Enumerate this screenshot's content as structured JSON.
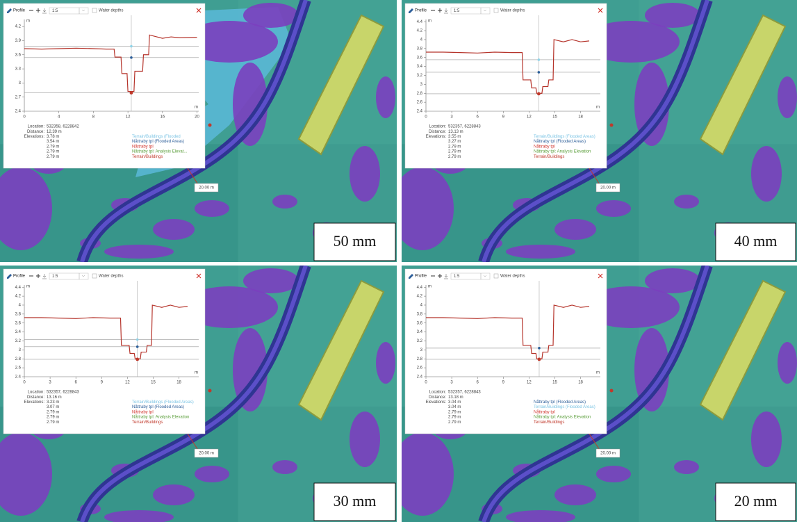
{
  "panels": [
    {
      "toolbar": {
        "title": "Profile",
        "scale": "1:5",
        "checkbox": "Water depths"
      },
      "profile": {
        "type": "line",
        "y_unit": "m",
        "x_unit": "m",
        "xlim": [
          0,
          20.2
        ],
        "ylim": [
          2.4,
          4.35
        ],
        "xticks": [
          0,
          4,
          8,
          12,
          16,
          20
        ],
        "yticks": [
          2.4,
          2.7,
          3,
          3.3,
          3.6,
          3.9,
          4.2
        ],
        "series": [
          {
            "color": "#b5332a",
            "x": [
              0,
              2,
              4,
              6,
              8,
              9.5,
              10.4,
              10.5,
              11.2,
              11.3,
              11.9,
              12,
              12.7,
              12.8,
              13.7,
              13.8,
              14.4,
              14.5,
              16,
              17,
              18,
              20
            ],
            "values": [
              3.73,
              3.72,
              3.73,
              3.74,
              3.73,
              3.72,
              3.72,
              3.55,
              3.55,
              3.2,
              3.2,
              2.82,
              2.82,
              3.25,
              3.25,
              3.6,
              3.6,
              4.02,
              3.95,
              3.98,
              3.96,
              3.97
            ]
          }
        ],
        "levels": [
          {
            "value": 3.78,
            "color": "#8fd3e8"
          },
          {
            "value": 3.54,
            "color": "#2d5f9a"
          },
          {
            "value": 2.79,
            "color": "#c0392b"
          }
        ],
        "cursor_x": 12.39
      },
      "info": {
        "location_label": "Location:",
        "location": "532358, 6228842",
        "distance_label": "Distance:",
        "distance": "12.39 m",
        "elevations_label": "Elevations:",
        "elevations": [
          "3.78 m",
          "3.54 m",
          "2.79 m",
          "2.79 m",
          "2.79 m"
        ]
      },
      "legend": [
        {
          "text": "Terrain/Buildings (Flooded",
          "color": "#7cc4e4"
        },
        {
          "text": "Nåttraby tpl (Flooded Areas)",
          "color": "#2d5f9a"
        },
        {
          "text": "Nåttraby tpl",
          "color": "#d0342c"
        },
        {
          "text": "Nåttraby tpl: Analysis Elevat...",
          "color": "#5a9e3a"
        },
        {
          "text": "Terrain/Buildings",
          "color": "#c0392b"
        }
      ],
      "scale_label": "20.00 m",
      "caption": "50 mm"
    },
    {
      "toolbar": {
        "title": "Profile",
        "scale": "1:5",
        "checkbox": "Water depths"
      },
      "profile": {
        "type": "line",
        "y_unit": "m",
        "x_unit": "m",
        "xlim": [
          0,
          20.3
        ],
        "ylim": [
          2.4,
          4.45
        ],
        "xticks": [
          0,
          3,
          6,
          9,
          12,
          15,
          18
        ],
        "yticks": [
          2.4,
          2.6,
          2.8,
          3,
          3.2,
          3.4,
          3.6,
          3.8,
          4,
          4.2,
          4.4
        ],
        "series": [
          {
            "color": "#b5332a",
            "x": [
              0,
              2,
              4,
              6,
              8,
              10,
              11.2,
              11.3,
              12.2,
              12.3,
              12.8,
              12.9,
              13.5,
              13.6,
              14.2,
              14.3,
              14.8,
              14.9,
              16,
              17,
              18,
              19
            ],
            "values": [
              3.72,
              3.72,
              3.71,
              3.7,
              3.72,
              3.71,
              3.71,
              3.1,
              3.1,
              2.92,
              2.92,
              2.8,
              2.8,
              2.95,
              2.95,
              3.1,
              3.1,
              4.0,
              3.95,
              4.0,
              3.95,
              3.97
            ]
          }
        ],
        "levels": [
          {
            "value": 3.55,
            "color": "#8fd3e8"
          },
          {
            "value": 3.27,
            "color": "#2d5f9a"
          },
          {
            "value": 2.79,
            "color": "#c0392b"
          }
        ],
        "cursor_x": 13.13
      },
      "info": {
        "location_label": "Location:",
        "location": "532357, 6228843",
        "distance_label": "Distance:",
        "distance": "13.13 m",
        "elevations_label": "Elevations:",
        "elevations": [
          "3.55 m",
          "3.27 m",
          "2.79 m",
          "2.79 m",
          "2.79 m"
        ]
      },
      "legend": [
        {
          "text": "Terrain/Buildings (Flooded Areas)",
          "color": "#7cc4e4"
        },
        {
          "text": "Nåttraby tpl (Flooded Areas)",
          "color": "#2d5f9a"
        },
        {
          "text": "Nåttraby tpl",
          "color": "#d0342c"
        },
        {
          "text": "Nåttraby tpl: Analysis Elevation",
          "color": "#5a9e3a"
        },
        {
          "text": "Terrain/Buildings",
          "color": "#c0392b"
        }
      ],
      "scale_label": "20.00 m",
      "caption": "40 mm"
    },
    {
      "toolbar": {
        "title": "Profile",
        "scale": "1:5",
        "checkbox": "Water depths"
      },
      "profile": {
        "type": "line",
        "y_unit": "m",
        "x_unit": "m",
        "xlim": [
          0,
          20.3
        ],
        "ylim": [
          2.4,
          4.45
        ],
        "xticks": [
          0,
          3,
          6,
          9,
          12,
          15,
          18
        ],
        "yticks": [
          2.4,
          2.6,
          2.8,
          3,
          3.2,
          3.4,
          3.6,
          3.8,
          4,
          4.2,
          4.4
        ],
        "series": [
          {
            "color": "#b5332a",
            "x": [
              0,
              2,
              4,
              6,
              8,
              10,
              11.2,
              11.3,
              12.2,
              12.3,
              12.8,
              12.9,
              13.5,
              13.6,
              14.2,
              14.3,
              14.8,
              14.9,
              16,
              17,
              18,
              19
            ],
            "values": [
              3.72,
              3.72,
              3.71,
              3.7,
              3.72,
              3.71,
              3.71,
              3.1,
              3.1,
              2.92,
              2.92,
              2.8,
              2.8,
              2.95,
              2.95,
              3.1,
              3.1,
              4.0,
              3.95,
              4.0,
              3.95,
              3.97
            ]
          }
        ],
        "levels": [
          {
            "value": 3.23,
            "color": "#8fd3e8"
          },
          {
            "value": 3.07,
            "color": "#2d5f9a"
          },
          {
            "value": 2.79,
            "color": "#c0392b"
          }
        ],
        "cursor_x": 13.16
      },
      "info": {
        "location_label": "Location:",
        "location": "532357, 6228843",
        "distance_label": "Distance:",
        "distance": "13.16 m",
        "elevations_label": "Elevations:",
        "elevations": [
          "3.23 m",
          "3.07 m",
          "2.79 m",
          "2.79 m",
          "2.79 m"
        ]
      },
      "legend": [
        {
          "text": "Terrain/Buildings (Flooded Areas)",
          "color": "#7cc4e4"
        },
        {
          "text": "Nåttraby tpl (Flooded Areas)",
          "color": "#2d5f9a"
        },
        {
          "text": "Nåttraby tpl",
          "color": "#d0342c"
        },
        {
          "text": "Nåttraby tpl: Analysis Elevation",
          "color": "#5a9e3a"
        },
        {
          "text": "Terrain/Buildings",
          "color": "#c0392b"
        }
      ],
      "scale_label": "20.00 m",
      "caption": "30 mm"
    },
    {
      "toolbar": {
        "title": "Profile",
        "scale": "1:5",
        "checkbox": "Water depths"
      },
      "profile": {
        "type": "line",
        "y_unit": "m",
        "x_unit": "m",
        "xlim": [
          0,
          20.3
        ],
        "ylim": [
          2.4,
          4.45
        ],
        "xticks": [
          0,
          3,
          6,
          9,
          12,
          15,
          18
        ],
        "yticks": [
          2.4,
          2.6,
          2.8,
          3,
          3.2,
          3.4,
          3.6,
          3.8,
          4,
          4.2,
          4.4
        ],
        "series": [
          {
            "color": "#b5332a",
            "x": [
              0,
              2,
              4,
              6,
              8,
              10,
              11.2,
              11.3,
              12.2,
              12.3,
              12.8,
              12.9,
              13.5,
              13.6,
              14.2,
              14.3,
              14.8,
              14.9,
              16,
              17,
              18,
              19
            ],
            "values": [
              3.72,
              3.72,
              3.71,
              3.7,
              3.72,
              3.71,
              3.71,
              3.1,
              3.1,
              2.92,
              2.92,
              2.8,
              2.8,
              2.95,
              2.95,
              3.1,
              3.1,
              4.0,
              3.95,
              4.0,
              3.95,
              3.97
            ]
          }
        ],
        "levels": [
          {
            "value": 3.04,
            "color": "#8fd3e8"
          },
          {
            "value": 3.04,
            "color": "#2d5f9a"
          },
          {
            "value": 2.79,
            "color": "#c0392b"
          }
        ],
        "cursor_x": 13.18
      },
      "info": {
        "location_label": "Location:",
        "location": "532357, 6228843",
        "distance_label": "Distance:",
        "distance": "13.18 m",
        "elevations_label": "Elevations:",
        "elevations": [
          "3.04 m",
          "3.04 m",
          "2.79 m",
          "2.79 m",
          "2.79 m"
        ]
      },
      "legend": [
        {
          "text": "Nåttraby tpl (Flooded Areas)",
          "color": "#2d5f9a"
        },
        {
          "text": "Terrain/Buildings (Flooded Areas)",
          "color": "#7cc4e4"
        },
        {
          "text": "Nåttraby tpl",
          "color": "#d0342c"
        },
        {
          "text": "Nåttraby tpl: Analysis Elevation",
          "color": "#5a9e3a"
        },
        {
          "text": "Terrain/Buildings",
          "color": "#c0392b"
        }
      ],
      "scale_label": "20.00 m",
      "caption": "20 mm"
    }
  ]
}
